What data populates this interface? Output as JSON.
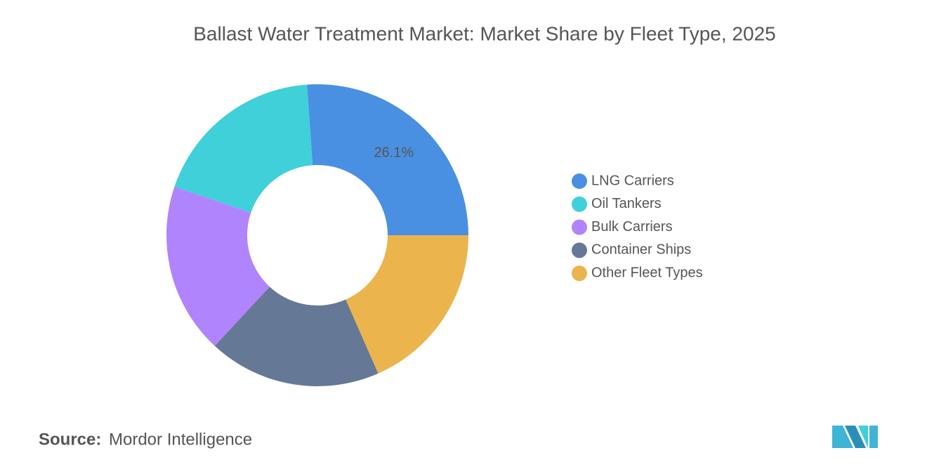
{
  "chart_data": {
    "type": "donut",
    "title": "Ballast Water Treatment Market: Market Share by Fleet Type, 2025",
    "categories": [
      "LNG Carriers",
      "Oil Tankers",
      "Bulk Carriers",
      "Container Ships",
      "Other Fleet Types"
    ],
    "values": [
      26.1,
      18.7,
      18.3,
      18.5,
      18.4
    ],
    "value_labels": [
      "26.1%",
      null,
      null,
      null,
      null
    ],
    "colors": [
      "#4a90e2",
      "#3fd0d9",
      "#b084fc",
      "#657896",
      "#ebb44c"
    ],
    "legend": "right"
  },
  "source": {
    "label": "Source:",
    "name": "Mordor Intelligence"
  }
}
